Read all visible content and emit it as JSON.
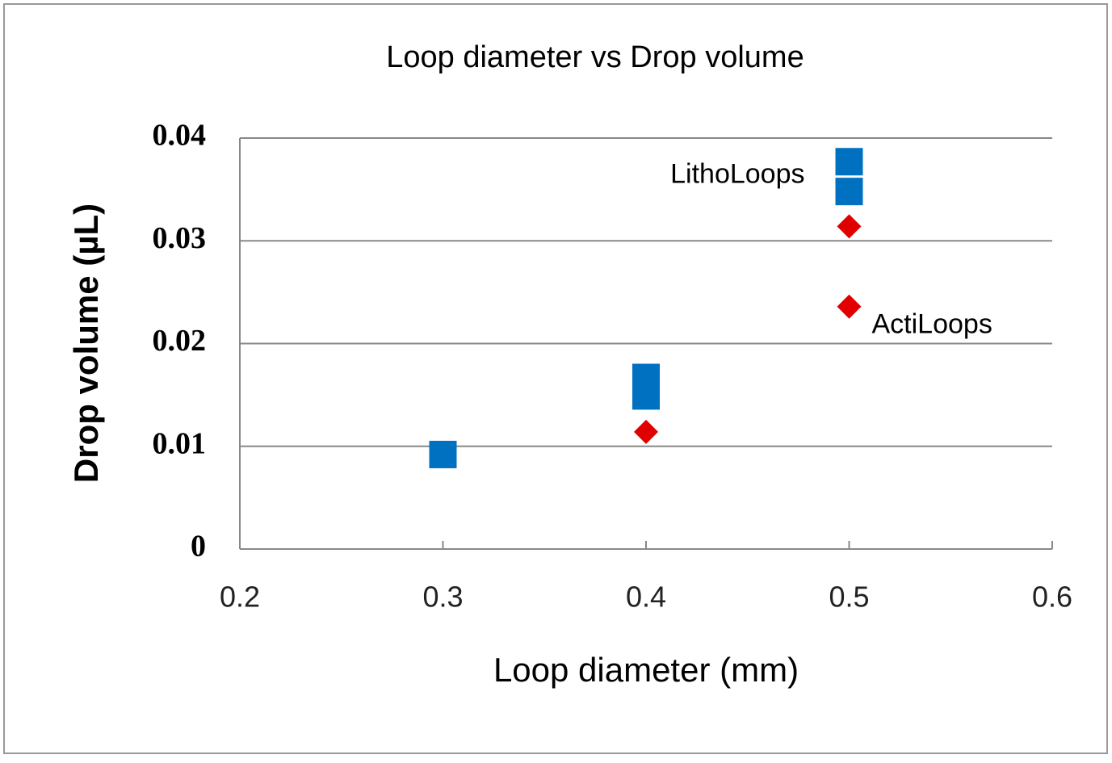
{
  "chart_data": {
    "type": "scatter",
    "title": "Loop diameter vs Drop volume",
    "x_label": "Loop diameter (mm)",
    "y_label": "Drop volume (µL)",
    "xlim": [
      0.2,
      0.6
    ],
    "ylim": [
      0,
      0.04
    ],
    "xticks": [
      0.2,
      0.3,
      0.4,
      0.5,
      0.6
    ],
    "yticks": [
      0,
      0.01,
      0.02,
      0.03,
      0.04
    ],
    "grid": true,
    "series": [
      {
        "name": "LithoLoops",
        "color": "#0070c0",
        "marker": "square",
        "x": [
          0.3,
          0.4,
          0.4,
          0.5,
          0.5
        ],
        "values": [
          0.0092,
          0.0167,
          0.0149,
          0.0377,
          0.0348
        ]
      },
      {
        "name": "ActiLoops",
        "color": "#e00000",
        "marker": "diamond",
        "x": [
          0.4,
          0.5,
          0.5
        ],
        "values": [
          0.0114,
          0.0314,
          0.0236
        ]
      }
    ]
  }
}
